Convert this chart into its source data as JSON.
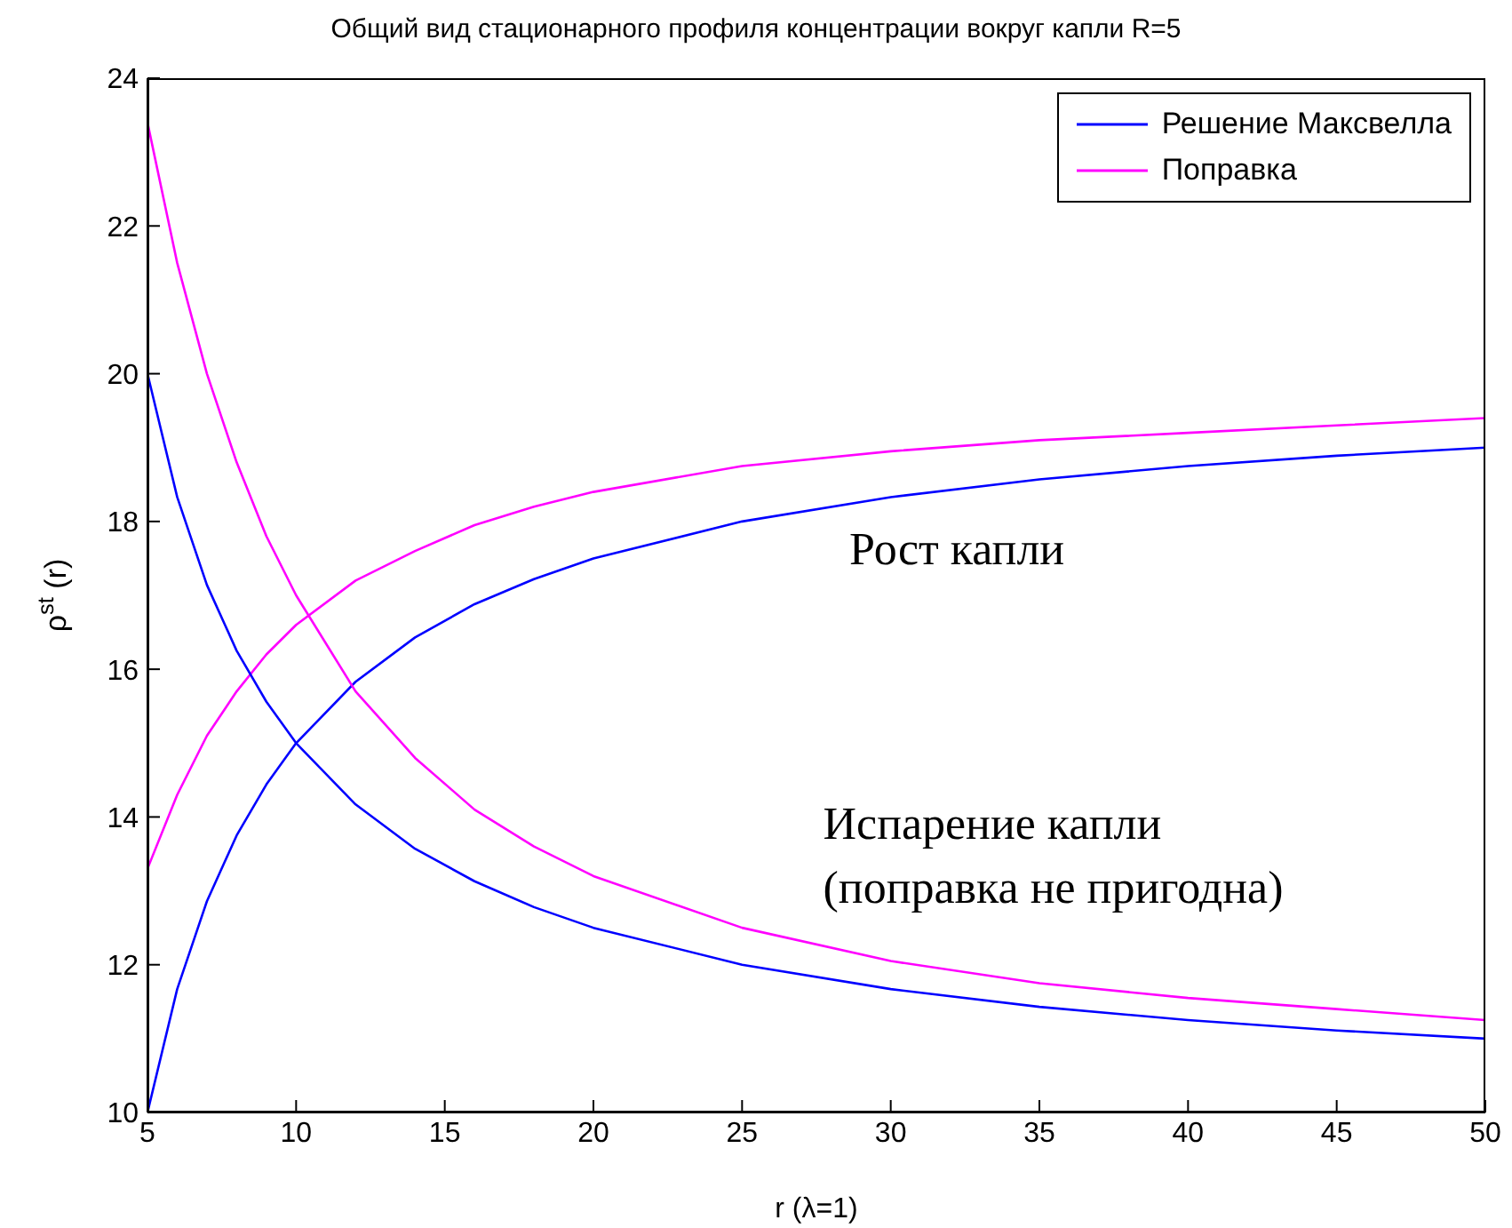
{
  "chart_data": {
    "type": "line",
    "title": "Общий вид стационарного профиля концентрации вокруг капли R=5",
    "xlabel": "r (λ=1)",
    "ylabel": "ρ$^{st}$ (r)",
    "x": [
      5,
      6,
      7,
      8,
      9,
      10,
      12,
      14,
      16,
      18,
      20,
      25,
      30,
      35,
      40,
      45,
      50
    ],
    "series": [
      {
        "name": "Решение Максвелла",
        "color": "#0000ff",
        "values": [
          10,
          11.67,
          12.86,
          13.75,
          14.44,
          15,
          15.83,
          16.43,
          16.88,
          17.22,
          17.5,
          18,
          18.33,
          18.57,
          18.75,
          18.89,
          19
        ]
      },
      {
        "name": "Поправка",
        "color": "#ff00ff",
        "values": [
          13.3,
          14.3,
          15.1,
          15.7,
          16.2,
          16.6,
          17.2,
          17.6,
          17.95,
          18.2,
          18.4,
          18.75,
          18.95,
          19.1,
          19.2,
          19.3,
          19.4
        ]
      },
      {
        "color": "#0000ff",
        "values": [
          20,
          18.33,
          17.14,
          16.25,
          15.56,
          15,
          14.17,
          13.57,
          13.13,
          12.78,
          12.5,
          12,
          11.67,
          11.43,
          11.25,
          11.11,
          11
        ]
      },
      {
        "color": "#ff00ff",
        "values": [
          23.4,
          21.5,
          20,
          18.8,
          17.8,
          17,
          15.7,
          14.8,
          14.1,
          13.6,
          13.2,
          12.5,
          12.05,
          11.75,
          11.55,
          11.4,
          11.25
        ]
      }
    ],
    "xlim": [
      5,
      50
    ],
    "xticks": [
      5,
      10,
      15,
      20,
      25,
      30,
      35,
      40,
      45,
      50
    ],
    "ylim": [
      10,
      24
    ],
    "yticks": [
      10,
      12,
      14,
      16,
      18,
      20,
      22,
      24
    ],
    "grid": false,
    "legend": "top right",
    "marker": "none",
    "line_style": "solid",
    "annotations": [
      "Рост капли",
      "Испарение капли\n(поправка не пригодна)"
    ]
  }
}
